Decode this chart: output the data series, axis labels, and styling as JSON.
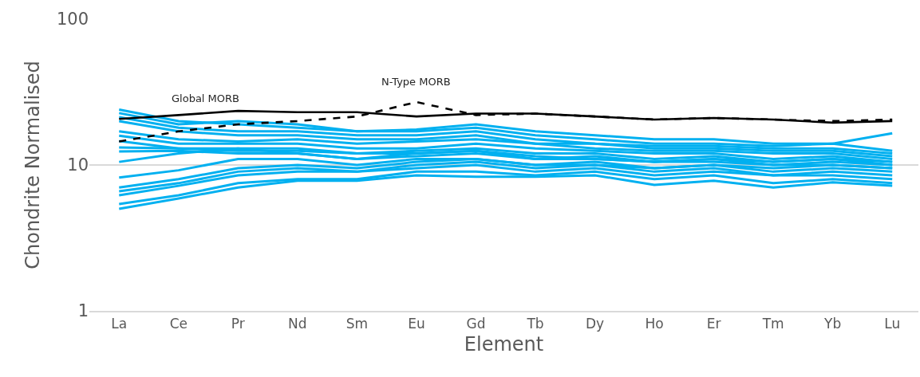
{
  "chart_data": {
    "type": "line",
    "xlabel": "Element",
    "ylabel": "Chondrite Normalised",
    "categories": [
      "La",
      "Ce",
      "Pr",
      "Nd",
      "Sm",
      "Eu",
      "Gd",
      "Tb",
      "Dy",
      "Ho",
      "Er",
      "Tm",
      "Yb",
      "Lu"
    ],
    "log": "y",
    "ylim": [
      1,
      100
    ],
    "yticks": [
      1,
      10,
      100
    ],
    "grid": "y",
    "legend": false,
    "marker": "none",
    "series": [
      {
        "color": "#00b0f0",
        "values": [
          24,
          20,
          19,
          18,
          17,
          17.5,
          19,
          17,
          16,
          15,
          15,
          14,
          14,
          16.5
        ]
      },
      {
        "color": "#00b0f0",
        "values": [
          22.7,
          19,
          20,
          19,
          17,
          17,
          18,
          16,
          15,
          14,
          14,
          13.5,
          14,
          12.5
        ]
      },
      {
        "color": "#00b0f0",
        "values": [
          21.3,
          18,
          17,
          17,
          16,
          16,
          17,
          15,
          14,
          13.5,
          13.5,
          13,
          13,
          12
        ]
      },
      {
        "color": "#00b0f0",
        "values": [
          20,
          17,
          16,
          16,
          15,
          15,
          16,
          14,
          14,
          13,
          13,
          12.5,
          12.5,
          11.5
        ]
      },
      {
        "color": "#00b0f0",
        "values": [
          17,
          15,
          14.5,
          15,
          14,
          14.5,
          15,
          14,
          13,
          12.5,
          12.5,
          12,
          12,
          11
        ]
      },
      {
        "color": "#00b0f0",
        "values": [
          15.9,
          14,
          14,
          14,
          13,
          13,
          14,
          13,
          12.5,
          12,
          12,
          11,
          11.5,
          10.5
        ]
      },
      {
        "color": "#00b0f0",
        "values": [
          14.6,
          13,
          13,
          13,
          12,
          12.5,
          13,
          12,
          12,
          11,
          11.5,
          10.5,
          11,
          10
        ]
      },
      {
        "color": "#00b0f0",
        "values": [
          13.2,
          13,
          12.5,
          12.5,
          12,
          12,
          12.5,
          11.5,
          11,
          10.5,
          11,
          10,
          10.5,
          10
        ]
      },
      {
        "color": "#00b0f0",
        "values": [
          12.4,
          12.5,
          12,
          12,
          11,
          11.5,
          12,
          11,
          11,
          10.5,
          10.5,
          10,
          10,
          9.5
        ]
      },
      {
        "color": "#00b0f0",
        "values": [
          10.5,
          12,
          13,
          12,
          11,
          12,
          12.5,
          11,
          11.5,
          10.5,
          11,
          10.5,
          11,
          10.5
        ]
      },
      {
        "color": "#00b0f0",
        "values": [
          8.2,
          9.2,
          11,
          11,
          10,
          11,
          11,
          10,
          10.5,
          9.5,
          10,
          9.5,
          10,
          9.5
        ]
      },
      {
        "color": "#00b0f0",
        "values": [
          7.0,
          8.0,
          9.5,
          10,
          9.5,
          10.5,
          11,
          10,
          10,
          9.5,
          10,
          9,
          9.5,
          9
        ]
      },
      {
        "color": "#00b0f0",
        "values": [
          6.6,
          7.5,
          9,
          9.5,
          9,
          10,
          10.5,
          9.5,
          10,
          9,
          9.5,
          8.5,
          9,
          8.5
        ]
      },
      {
        "color": "#00b0f0",
        "values": [
          6.2,
          7.2,
          8.5,
          9,
          9,
          9.5,
          10,
          9,
          9.5,
          8.5,
          9,
          8.5,
          8.5,
          8
        ]
      },
      {
        "color": "#00b0f0",
        "values": [
          5.4,
          6.2,
          7.5,
          8,
          8,
          9,
          9,
          8.5,
          9,
          8,
          8.5,
          7.5,
          8,
          7.5
        ]
      },
      {
        "color": "#00b0f0",
        "values": [
          5.0,
          5.9,
          7.0,
          7.8,
          7.8,
          8.5,
          8.3,
          8.3,
          8.5,
          7.3,
          7.8,
          7,
          7.6,
          7.2
        ]
      },
      {
        "name": "Global MORB",
        "color": "#000000",
        "line_style": "solid",
        "values": [
          20.7,
          22,
          23.5,
          23,
          23,
          21.5,
          22.5,
          22.5,
          21.5,
          20.5,
          21,
          20.5,
          19.5,
          20
        ]
      },
      {
        "name": "N-Type MORB",
        "color": "#000000",
        "line_style": "dashed",
        "values": [
          14.5,
          17,
          19,
          20,
          21.5,
          27,
          22,
          22.5,
          21.5,
          20.5,
          21,
          20.5,
          20,
          20.5
        ]
      }
    ]
  }
}
